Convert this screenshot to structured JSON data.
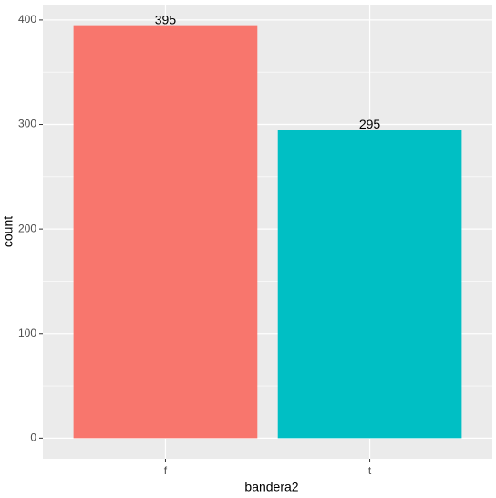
{
  "chart_data": {
    "type": "bar",
    "x_label": "bandera2",
    "y_label": "count",
    "categories": [
      "f",
      "t"
    ],
    "series": [
      {
        "name": "bandera2",
        "colors": [
          "#F8766D",
          "#00BFC4"
        ],
        "values": [
          395,
          295
        ]
      }
    ],
    "ylim": [
      -19.75,
      414.75
    ],
    "yticks": [
      0,
      100,
      200,
      300,
      400
    ],
    "yminor": [
      50,
      150,
      250,
      350
    ],
    "grid": true,
    "legend": false
  }
}
